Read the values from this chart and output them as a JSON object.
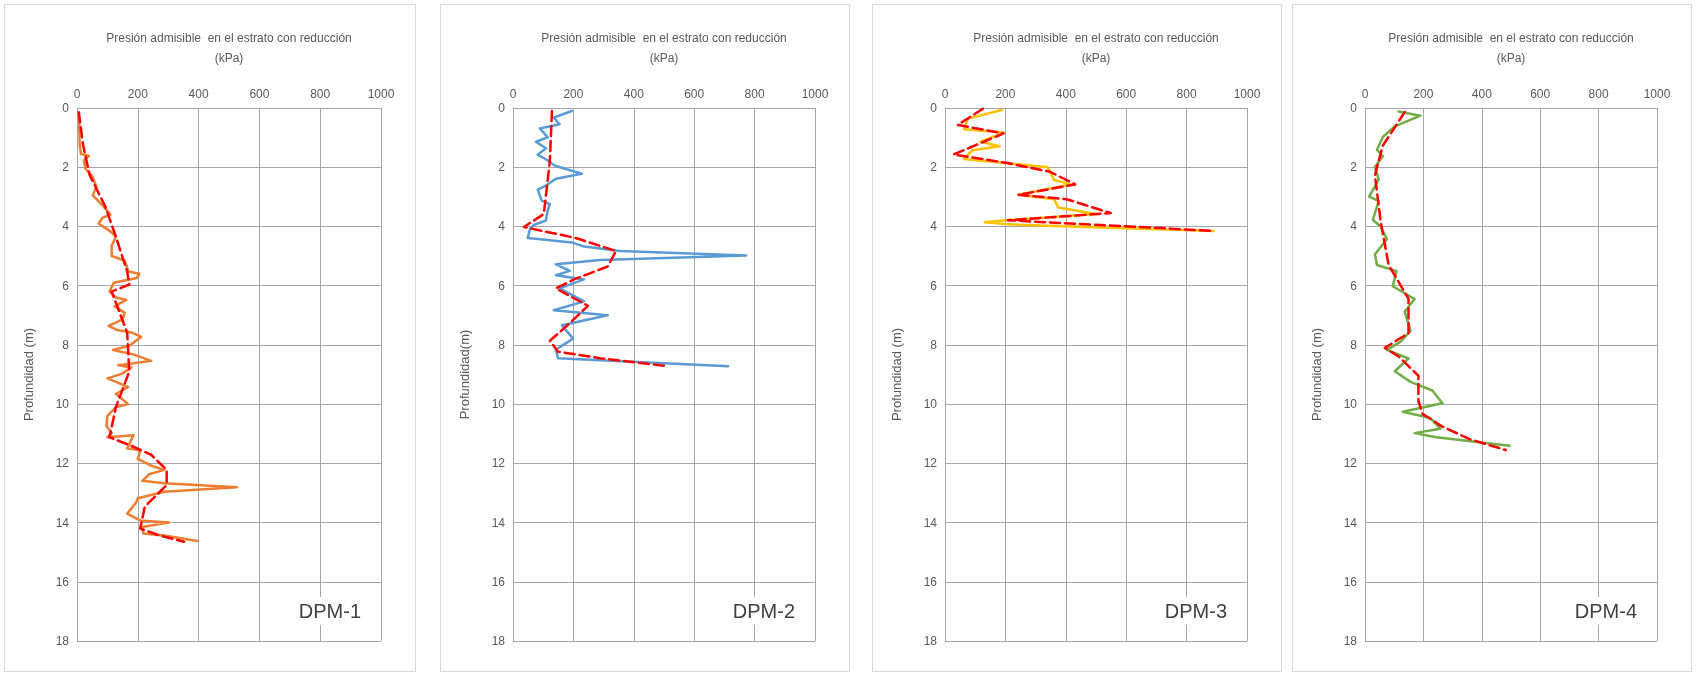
{
  "chart_data": [
    {
      "type": "line",
      "xlabel": "Presión admisible  en el estrato con reducción\n(kPa)",
      "ylabel": "Profundidad (m)",
      "xlim": [
        0,
        1000
      ],
      "xticks": [
        0,
        200,
        400,
        600,
        800,
        1000
      ],
      "ylim": [
        18,
        0
      ],
      "yticks": [
        0,
        2,
        4,
        6,
        8,
        10,
        12,
        14,
        16,
        18
      ],
      "grid": true,
      "marker": "none",
      "annotations": [
        "DPM-1"
      ],
      "series": [
        {
          "color": "#ed7d31",
          "line_style": "solid",
          "x": [
            6,
            9,
            13,
            39,
            23,
            28,
            49,
            64,
            52,
            85,
            110,
            85,
            71,
            114,
            128,
            114,
            114,
            157,
            169,
            205,
            197,
            121,
            107,
            128,
            162,
            124,
            157,
            150,
            104,
            133,
            179,
            211,
            172,
            118,
            186,
            244,
            136,
            179,
            147,
            100,
            136,
            168,
            128,
            168,
            128,
            100,
            97,
            114,
            100,
            186,
            165,
            208,
            200,
            244,
            287,
            237,
            215,
            287,
            526,
            287,
            200,
            194,
            165,
            208,
            302,
            215,
            218,
            287,
            396
          ],
          "values": [
            0.15,
            1.25,
            1.55,
            1.62,
            1.77,
            2.06,
            2.28,
            2.65,
            2.95,
            3.3,
            3.6,
            3.7,
            3.9,
            4.2,
            4.35,
            4.65,
            5.0,
            5.15,
            5.52,
            5.6,
            5.74,
            5.9,
            6.2,
            6.4,
            6.48,
            6.7,
            6.92,
            7.14,
            7.36,
            7.5,
            7.58,
            7.73,
            8.03,
            8.17,
            8.32,
            8.54,
            8.69,
            8.76,
            8.98,
            9.13,
            9.28,
            9.43,
            9.65,
            10.0,
            10.1,
            10.4,
            10.75,
            10.97,
            11.12,
            11.05,
            11.49,
            11.56,
            11.85,
            12.08,
            12.22,
            12.37,
            12.59,
            12.67,
            12.81,
            12.96,
            13.18,
            13.33,
            13.7,
            13.93,
            14.0,
            14.15,
            14.37,
            14.44,
            14.62
          ]
        },
        {
          "color": "#ff0000",
          "line_style": "dashed",
          "x": [
            6,
            20,
            42,
            92,
            128,
            165,
            172,
            114,
            165,
            172,
            128,
            107,
            179,
            244,
            295,
            295,
            223,
            208,
            266,
            352
          ],
          "values": [
            0.15,
            1.25,
            2.28,
            3.3,
            4.35,
            5.52,
            5.96,
            6.2,
            7.58,
            8.9,
            10.1,
            11.12,
            11.41,
            11.71,
            12.22,
            12.73,
            13.47,
            14.2,
            14.42,
            14.65
          ]
        }
      ]
    },
    {
      "type": "line",
      "xlabel": "Presión admisible  en el estrato con reducción\n(kPa)",
      "ylabel": "Profundidad(m)",
      "xlim": [
        0,
        1000
      ],
      "xticks": [
        0,
        200,
        400,
        600,
        800,
        1000
      ],
      "ylim": [
        18,
        0
      ],
      "yticks": [
        0,
        2,
        4,
        6,
        8,
        10,
        12,
        14,
        16,
        18
      ],
      "grid": true,
      "marker": "none",
      "annotations": [
        "DPM-2"
      ],
      "series": [
        {
          "color": "#5b9bd5",
          "line_style": "solid",
          "x": [
            195,
            135,
            154,
            89,
            115,
            76,
            109,
            82,
            109,
            139,
            228,
            142,
            109,
            82,
            95,
            122,
            114,
            109,
            69,
            56,
            49,
            195,
            235,
            354,
            772,
            288,
            142,
            188,
            142,
            235,
            155,
            235,
            135,
            314,
            162,
            199,
            142,
            149,
            712
          ],
          "values": [
            0.1,
            0.32,
            0.55,
            0.69,
            0.99,
            1.14,
            1.36,
            1.58,
            1.73,
            1.95,
            2.22,
            2.39,
            2.62,
            2.76,
            3.13,
            3.25,
            3.5,
            3.8,
            3.95,
            4.09,
            4.39,
            4.54,
            4.68,
            4.83,
            4.98,
            5.13,
            5.28,
            5.5,
            5.65,
            5.79,
            6.09,
            6.53,
            6.83,
            7.0,
            7.34,
            7.79,
            8.16,
            8.45,
            8.72
          ]
        },
        {
          "color": "#ff0000",
          "line_style": "dashed",
          "x": [
            129,
            122,
            102,
            36,
            208,
            341,
            314,
            202,
            142,
            248,
            188,
            122,
            149,
            288,
            513
          ],
          "values": [
            0.1,
            1.8,
            3.58,
            4.02,
            4.39,
            4.83,
            5.35,
            5.79,
            6.09,
            6.68,
            7.27,
            7.86,
            8.23,
            8.45,
            8.72
          ]
        }
      ]
    },
    {
      "type": "line",
      "xlabel": "Presión admisible  en el estrato con reducción\n(kPa)",
      "ylabel": "Profundidad (m)",
      "xlim": [
        0,
        1000
      ],
      "xticks": [
        0,
        200,
        400,
        600,
        800,
        1000
      ],
      "ylim": [
        18,
        0
      ],
      "yticks": [
        0,
        2,
        4,
        6,
        8,
        10,
        12,
        14,
        16,
        18
      ],
      "grid": true,
      "marker": "none",
      "annotations": [
        "DPM-3"
      ],
      "series": [
        {
          "color": "#ffc000",
          "line_style": "solid",
          "x": [
            188,
            76,
            63,
            194,
            118,
            181,
            90,
            63,
            340,
            361,
            417,
            243,
            361,
            375,
            500,
            201,
            132,
            208,
            889
          ],
          "values": [
            0.07,
            0.36,
            0.72,
            0.83,
            1.14,
            1.29,
            1.43,
            1.72,
            2.0,
            2.43,
            2.58,
            2.93,
            3.08,
            3.36,
            3.58,
            3.79,
            3.86,
            3.93,
            4.15
          ]
        },
        {
          "color": "#ff0000",
          "line_style": "dashed",
          "x": [
            125,
            42,
            194,
            28,
            208,
            347,
            431,
            243,
            403,
            549,
            208,
            889
          ],
          "values": [
            0.03,
            0.57,
            0.86,
            1.57,
            1.86,
            2.15,
            2.58,
            2.93,
            3.08,
            3.55,
            3.79,
            4.15
          ]
        }
      ]
    },
    {
      "type": "line",
      "xlabel": "Presión admisible  en el estrato con reducción\n(kPa)",
      "ylabel": "Profundidad (m)",
      "xlim": [
        0,
        1000
      ],
      "xticks": [
        0,
        200,
        400,
        600,
        800,
        1000
      ],
      "ylim": [
        18,
        0
      ],
      "yticks": [
        0,
        2,
        4,
        6,
        8,
        10,
        12,
        14,
        16,
        18
      ],
      "grid": true,
      "marker": "none",
      "annotations": [
        "DPM-4"
      ],
      "series": [
        {
          "color": "#70ad47",
          "line_style": "solid",
          "x": [
            115,
            190,
            102,
            61,
            41,
            61,
            34,
            47,
            14,
            47,
            27,
            54,
            75,
            34,
            41,
            108,
            95,
            170,
            136,
            156,
            122,
            75,
            149,
            102,
            156,
            231,
            265,
            129,
            224,
            258,
            170,
            244,
            495
          ],
          "values": [
            0.12,
            0.26,
            0.62,
            0.98,
            1.41,
            1.63,
            1.99,
            2.42,
            2.99,
            3.14,
            3.78,
            4.0,
            4.43,
            4.94,
            5.3,
            5.51,
            6.02,
            6.45,
            6.88,
            7.53,
            7.89,
            8.17,
            8.46,
            8.89,
            9.25,
            9.54,
            9.97,
            10.26,
            10.47,
            10.83,
            10.98,
            11.12,
            11.41
          ]
        },
        {
          "color": "#ff0000",
          "line_style": "dashed",
          "x": [
            136,
            61,
            34,
            54,
            81,
            149,
            149,
            68,
            115,
            183,
            183,
            197,
            265,
            360,
            482
          ],
          "values": [
            0.14,
            1.27,
            2.27,
            3.86,
            5.3,
            6.45,
            7.6,
            8.1,
            8.39,
            9.04,
            9.9,
            10.33,
            10.76,
            11.19,
            11.55
          ]
        }
      ]
    }
  ]
}
